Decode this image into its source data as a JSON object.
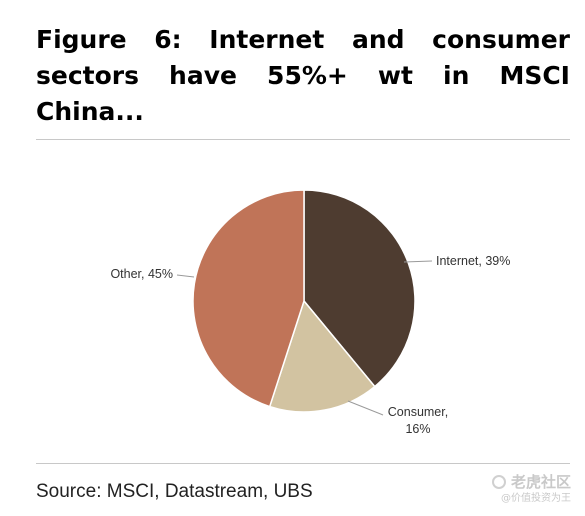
{
  "title": "Figure 6: Internet and consumer sectors have 55%+ wt in MSCI China...",
  "source": "Source: MSCI, Datastream, UBS",
  "watermark": {
    "main": "老虎社区",
    "sub": "@价值投资为王"
  },
  "chart_data": {
    "type": "pie",
    "title": "",
    "slices": [
      {
        "name": "Internet",
        "value": 39,
        "label": "Internet, 39%",
        "color": "#4e3c30"
      },
      {
        "name": "Consumer",
        "value": 16,
        "label": "Consumer, 16%",
        "color": "#d2c3a1"
      },
      {
        "name": "Other",
        "value": 45,
        "label": "Other, 45%",
        "color": "#c07458"
      }
    ],
    "start": "12 o'clock",
    "direction": "clockwise",
    "legend": "none",
    "label_style": "outside with leader lines"
  }
}
